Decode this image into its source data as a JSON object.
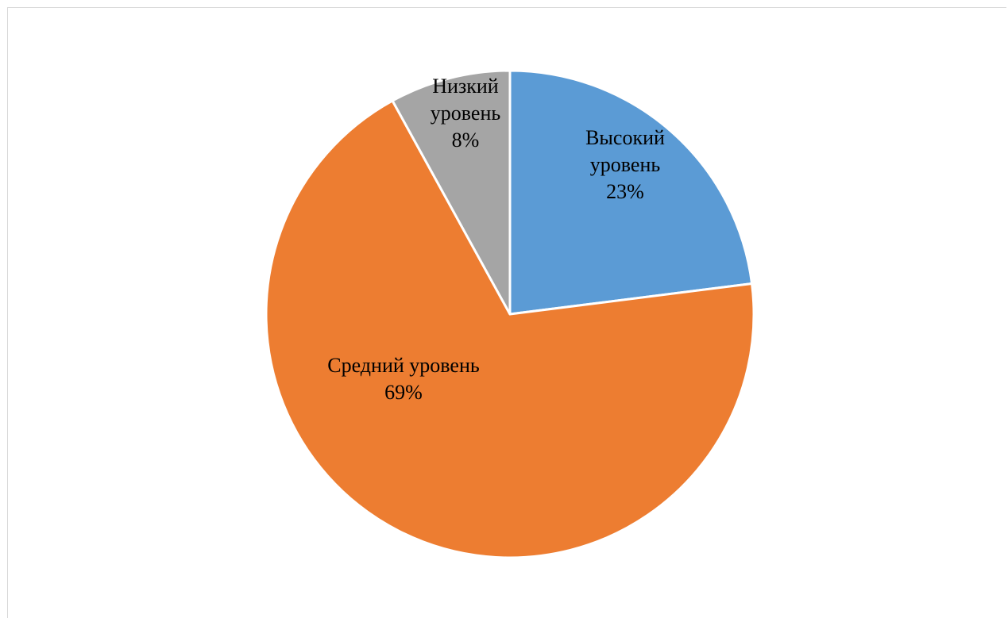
{
  "chart_data": {
    "type": "pie",
    "categories": [
      "Высокий уровень",
      "Средний уровень",
      "Низкий уровень"
    ],
    "values": [
      23,
      69,
      8
    ],
    "value_suffix": "%",
    "label_lines": [
      [
        "Высокий",
        "уровень",
        "23%"
      ],
      [
        "Средний уровень",
        "69%"
      ],
      [
        "Низкий",
        "уровень",
        "8%"
      ]
    ],
    "colors": [
      "#5b9bd5",
      "#ed7d31",
      "#a5a5a5"
    ],
    "start_angle": "12 o'clock",
    "direction": "clockwise",
    "title": "",
    "legend": "none"
  }
}
